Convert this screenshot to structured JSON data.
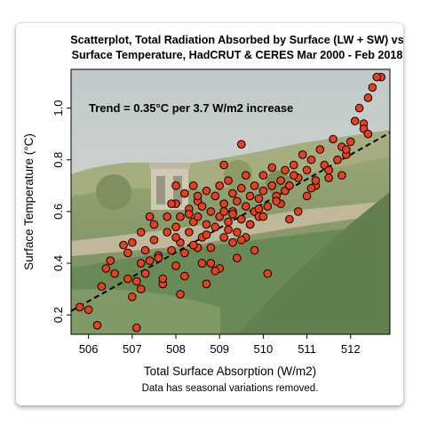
{
  "chart_data": {
    "type": "scatter",
    "title": "Scatterplot, Total Radiation Absorbed by Surface (LW + SW) vs",
    "subtitle": "Surface Temperature, HadCRUT & CERES Mar 2000 - Feb 2018",
    "xlabel": "Total Surface Absorption (W/m2)",
    "ylabel": "Surface Temperature (°C)",
    "note": "Data has seasonal variations removed.",
    "annotation": "Trend = 0.35°C per 3.7 W/m2 increase",
    "xlim": [
      505.6,
      512.9
    ],
    "ylim": [
      0.125,
      1.15
    ],
    "xticks": [
      "506",
      "507",
      "508",
      "509",
      "510",
      "511",
      "512"
    ],
    "yticks": [
      "0.2",
      "0.4",
      "0.6",
      "0.8",
      "1.0"
    ],
    "grid": false,
    "background": "photo of a terraced garden",
    "marker_color": "#e8401c",
    "marker_edge": "#000000",
    "trend_line": {
      "style": "dashed",
      "color": "#000000",
      "x": [
        505.6,
        512.9
      ],
      "y": [
        0.215,
        0.905
      ]
    },
    "x": [
      505.8,
      506.0,
      506.2,
      506.3,
      506.5,
      506.6,
      506.8,
      506.9,
      507.0,
      507.0,
      507.1,
      507.2,
      507.2,
      507.3,
      507.3,
      507.4,
      507.5,
      507.5,
      507.6,
      507.7,
      507.8,
      507.8,
      507.9,
      508.0,
      508.0,
      508.0,
      508.1,
      508.1,
      508.2,
      508.2,
      508.3,
      508.3,
      508.4,
      508.4,
      508.5,
      508.5,
      508.5,
      508.6,
      508.6,
      508.7,
      508.7,
      508.8,
      508.8,
      508.9,
      508.9,
      509.0,
      509.0,
      509.1,
      509.1,
      509.2,
      509.2,
      509.3,
      509.3,
      509.4,
      509.4,
      509.5,
      509.5,
      509.6,
      509.6,
      509.7,
      509.7,
      509.8,
      509.8,
      509.9,
      509.9,
      510.0,
      510.0,
      510.1,
      510.2,
      510.2,
      510.3,
      510.4,
      510.5,
      510.5,
      510.6,
      510.7,
      510.8,
      510.9,
      511.0,
      511.0,
      511.1,
      511.2,
      511.3,
      511.4,
      511.5,
      511.6,
      511.7,
      511.8,
      511.9,
      512.0,
      512.1,
      512.2,
      512.3,
      512.4,
      512.5,
      512.7,
      507.2,
      507.6,
      508.0,
      508.4,
      508.8,
      509.2,
      509.6,
      510.0,
      510.4,
      510.8,
      511.2,
      511.5,
      511.9,
      512.3,
      507.4,
      507.9,
      508.3,
      508.7,
      509.1,
      509.5,
      509.9,
      510.3,
      510.7,
      511.1,
      508.2,
      508.6,
      509.0,
      509.4,
      509.8,
      508.9,
      509.3,
      509.7,
      508.5,
      509.1,
      508.1,
      508.7,
      509.5,
      510.1,
      506.4,
      506.9,
      507.7,
      511.8,
      512.4,
      509.3,
      508.0,
      510.6,
      507.1,
      512.6
    ],
    "y": [
      0.23,
      0.22,
      0.16,
      0.31,
      0.41,
      0.36,
      0.47,
      0.34,
      0.27,
      0.48,
      0.33,
      0.4,
      0.52,
      0.36,
      0.45,
      0.41,
      0.49,
      0.55,
      0.43,
      0.32,
      0.52,
      0.58,
      0.45,
      0.39,
      0.54,
      0.63,
      0.48,
      0.58,
      0.44,
      0.67,
      0.52,
      0.61,
      0.56,
      0.7,
      0.46,
      0.58,
      0.64,
      0.5,
      0.62,
      0.55,
      0.68,
      0.46,
      0.6,
      0.54,
      0.66,
      0.58,
      0.7,
      0.5,
      0.63,
      0.56,
      0.72,
      0.6,
      0.67,
      0.52,
      0.64,
      0.57,
      0.69,
      0.62,
      0.74,
      0.55,
      0.66,
      0.6,
      0.7,
      0.65,
      0.58,
      0.68,
      0.74,
      0.62,
      0.7,
      0.77,
      0.66,
      0.72,
      0.68,
      0.76,
      0.7,
      0.78,
      0.73,
      0.82,
      0.66,
      0.76,
      0.8,
      0.7,
      0.84,
      0.78,
      0.73,
      0.88,
      0.8,
      0.85,
      0.82,
      0.87,
      0.95,
      1.0,
      0.94,
      1.04,
      1.08,
      1.12,
      0.3,
      0.42,
      0.5,
      0.47,
      0.4,
      0.53,
      0.5,
      0.58,
      0.63,
      0.6,
      0.72,
      0.76,
      0.84,
      0.92,
      0.58,
      0.63,
      0.59,
      0.51,
      0.6,
      0.49,
      0.61,
      0.64,
      0.74,
      0.69,
      0.35,
      0.4,
      0.38,
      0.42,
      0.45,
      0.37,
      0.48,
      0.55,
      0.66,
      0.78,
      0.28,
      0.32,
      0.86,
      0.36,
      0.38,
      0.44,
      0.34,
      0.74,
      0.9,
      0.59,
      0.7,
      0.57,
      0.15,
      1.12
    ]
  }
}
